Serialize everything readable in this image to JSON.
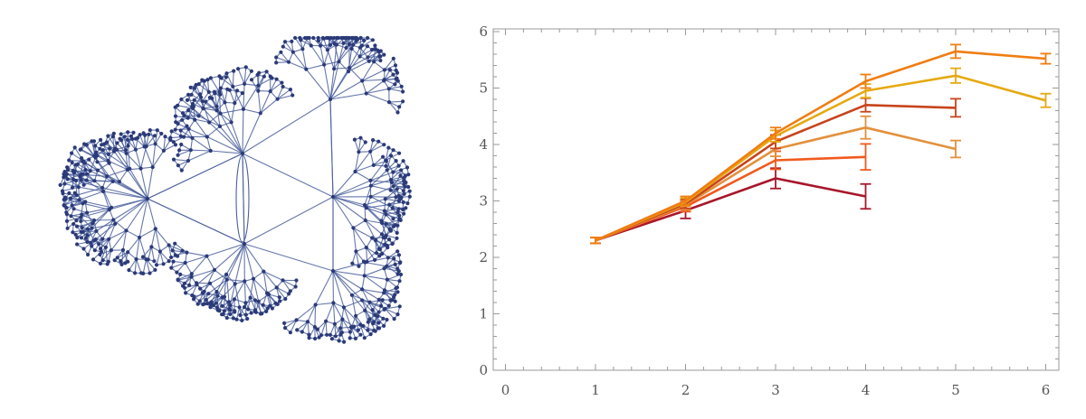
{
  "graph": {
    "node_color": "#2b3a78",
    "edge_color": "#4a5f9c"
  },
  "chart_data": {
    "type": "line",
    "xlim": [
      0,
      6
    ],
    "ylim": [
      0,
      6
    ],
    "x_ticks": [
      "0",
      "1",
      "2",
      "3",
      "4",
      "5",
      "6"
    ],
    "y_ticks": [
      "0",
      "1",
      "2",
      "3",
      "4",
      "5",
      "6"
    ],
    "grid": false,
    "legend": "none",
    "title": "",
    "xlabel": "",
    "ylabel": "",
    "error_bars": true,
    "series": [
      {
        "color": "#f07d12",
        "points": [
          [
            1,
            2.3,
            0.05
          ],
          [
            2,
            3.0,
            0.08
          ],
          [
            3,
            4.2,
            0.1
          ],
          [
            4,
            5.12,
            0.12
          ],
          [
            5,
            5.65,
            0.12
          ],
          [
            6,
            5.52,
            0.09
          ]
        ]
      },
      {
        "color": "#e5a912",
        "points": [
          [
            1,
            2.3,
            0.05
          ],
          [
            2,
            2.98,
            0.07
          ],
          [
            3,
            4.15,
            0.1
          ],
          [
            4,
            4.95,
            0.12
          ],
          [
            5,
            5.22,
            0.13
          ],
          [
            6,
            4.78,
            0.12
          ]
        ]
      },
      {
        "color": "#c8441c",
        "points": [
          [
            1,
            2.3,
            0.05
          ],
          [
            2,
            2.95,
            0.08
          ],
          [
            3,
            4.05,
            0.12
          ],
          [
            4,
            4.7,
            0.12
          ],
          [
            5,
            4.65,
            0.16
          ]
        ]
      },
      {
        "color": "#e3903c",
        "points": [
          [
            1,
            2.3,
            0.05
          ],
          [
            2,
            2.93,
            0.09
          ],
          [
            3,
            3.92,
            0.13
          ],
          [
            4,
            4.3,
            0.2
          ],
          [
            5,
            3.92,
            0.15
          ]
        ]
      },
      {
        "color": "#f05a1e",
        "points": [
          [
            1,
            2.3,
            0.05
          ],
          [
            2,
            2.9,
            0.09
          ],
          [
            3,
            3.72,
            0.16
          ],
          [
            4,
            3.78,
            0.23
          ]
        ]
      },
      {
        "color": "#a8162a",
        "points": [
          [
            1,
            2.3,
            0.05
          ],
          [
            2,
            2.83,
            0.14
          ],
          [
            3,
            3.4,
            0.18
          ],
          [
            4,
            3.08,
            0.22
          ]
        ]
      }
    ]
  }
}
